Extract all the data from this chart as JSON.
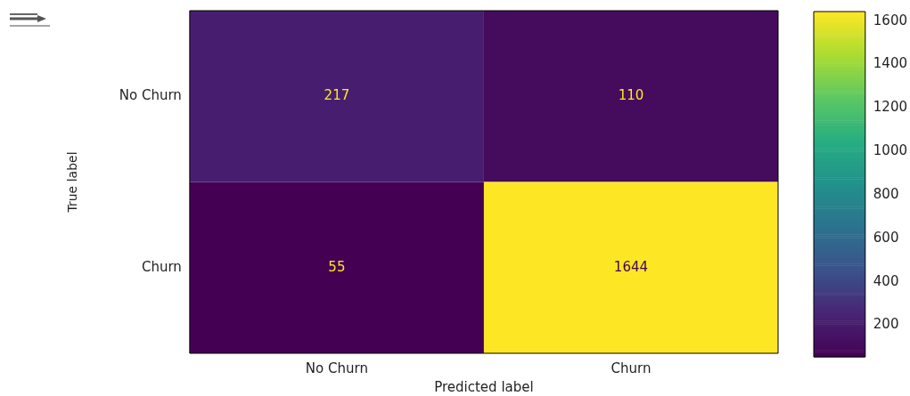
{
  "chart_data": {
    "type": "heatmap",
    "xlabel": "Predicted label",
    "ylabel": "True label",
    "categories": [
      "No Churn",
      "Churn"
    ],
    "y_categories": [
      "No Churn",
      "Churn"
    ],
    "cells": [
      [
        217,
        110
      ],
      [
        55,
        1644
      ]
    ],
    "clim": [
      55,
      1644
    ],
    "cticks": [
      200,
      400,
      600,
      800,
      1000,
      1200,
      1400,
      1600
    ],
    "data_labels": true
  }
}
